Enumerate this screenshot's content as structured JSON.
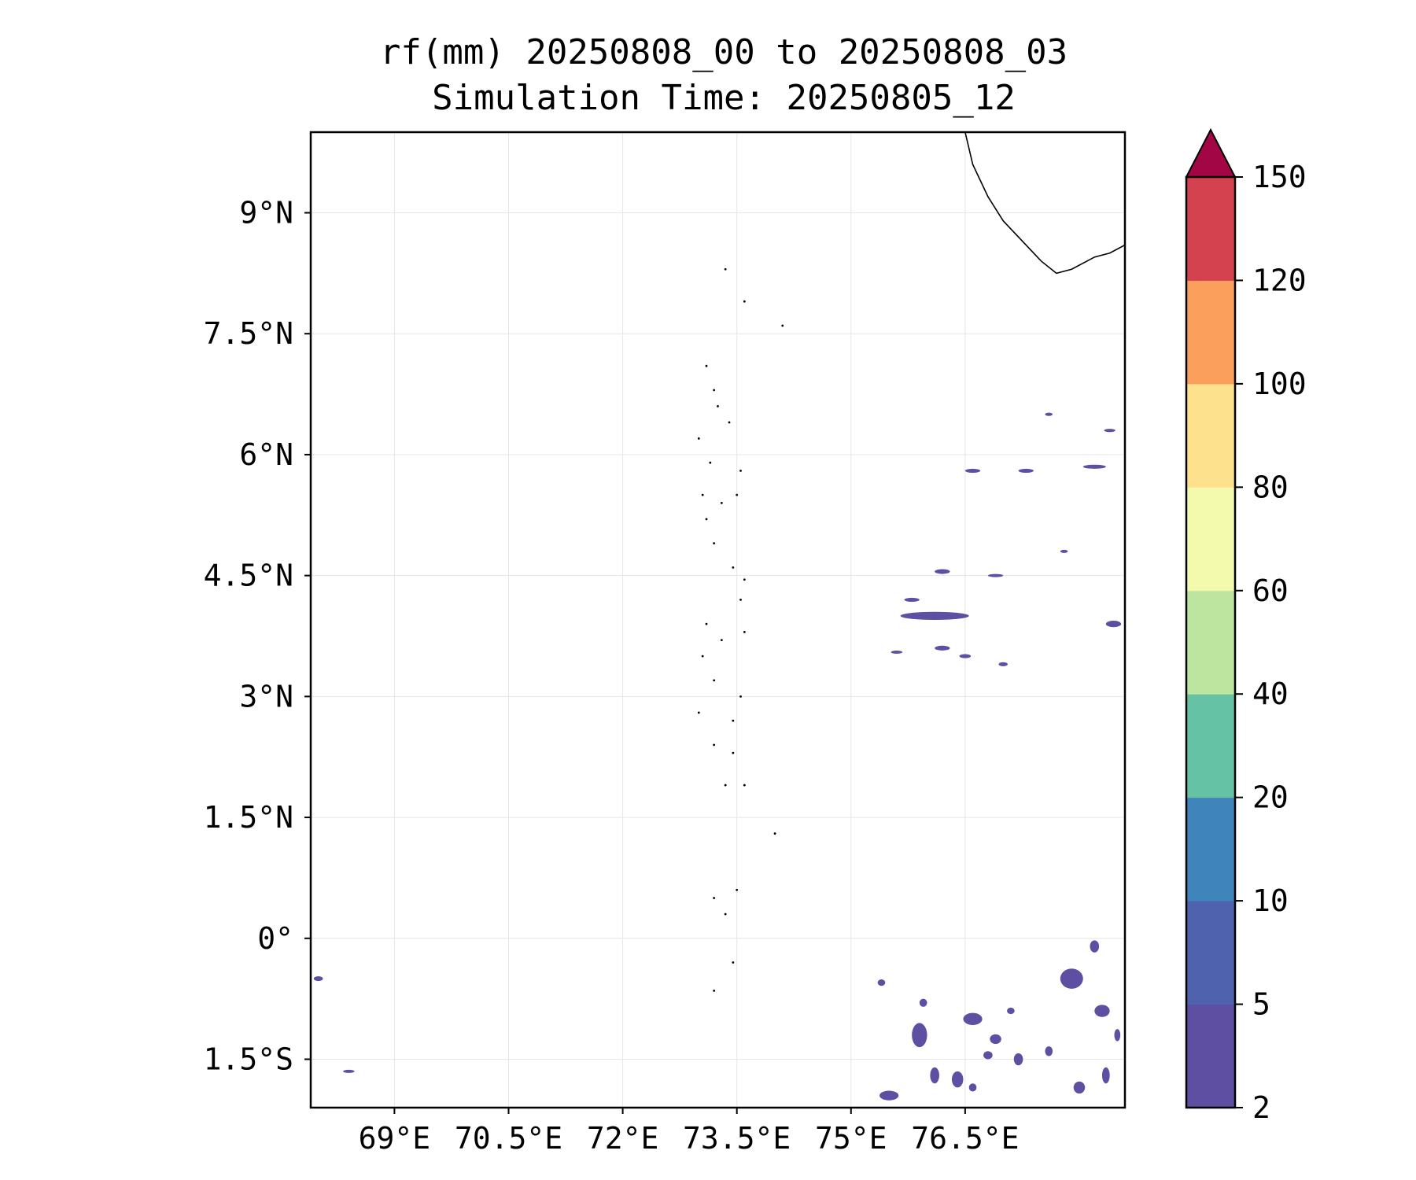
{
  "title": {
    "line1": "rf(mm) 20250808_00 to 20250808_03",
    "line2": "Simulation Time: 20250805_12"
  },
  "map": {
    "lon_range": [
      67.9,
      78.6
    ],
    "lat_range": [
      -2.1,
      10.0
    ],
    "lon_ticks": [
      {
        "value": 69.0,
        "label": "69°E"
      },
      {
        "value": 70.5,
        "label": "70.5°E"
      },
      {
        "value": 72.0,
        "label": "72°E"
      },
      {
        "value": 73.5,
        "label": "73.5°E"
      },
      {
        "value": 75.0,
        "label": "75°E"
      },
      {
        "value": 76.5,
        "label": "76.5°E"
      }
    ],
    "lat_ticks": [
      {
        "value": 9.0,
        "label": "9°N"
      },
      {
        "value": 7.5,
        "label": "7.5°N"
      },
      {
        "value": 6.0,
        "label": "6°N"
      },
      {
        "value": 4.5,
        "label": "4.5°N"
      },
      {
        "value": 3.0,
        "label": "3°N"
      },
      {
        "value": 1.5,
        "label": "1.5°N"
      },
      {
        "value": 0.0,
        "label": "0°"
      },
      {
        "value": -1.5,
        "label": "1.5°S"
      }
    ],
    "gridlines": true,
    "coastline_india": [
      [
        78.6,
        8.6
      ],
      [
        78.4,
        8.5
      ],
      [
        78.2,
        8.45
      ],
      [
        77.9,
        8.3
      ],
      [
        77.7,
        8.25
      ],
      [
        77.5,
        8.4
      ],
      [
        77.3,
        8.6
      ],
      [
        77.0,
        8.9
      ],
      [
        76.8,
        9.2
      ],
      [
        76.6,
        9.6
      ],
      [
        76.5,
        10.0
      ]
    ],
    "maldives_atolls": [
      [
        73.35,
        8.3
      ],
      [
        73.1,
        7.1
      ],
      [
        73.2,
        6.8
      ],
      [
        73.25,
        6.6
      ],
      [
        73.4,
        6.4
      ],
      [
        73.0,
        6.2
      ],
      [
        73.15,
        5.9
      ],
      [
        73.05,
        5.5
      ],
      [
        73.3,
        5.4
      ],
      [
        73.1,
        5.2
      ],
      [
        73.5,
        5.5
      ],
      [
        73.55,
        5.8
      ],
      [
        73.2,
        4.9
      ],
      [
        73.45,
        4.6
      ],
      [
        73.55,
        4.2
      ],
      [
        73.6,
        4.45
      ],
      [
        73.1,
        3.9
      ],
      [
        73.3,
        3.7
      ],
      [
        73.6,
        3.8
      ],
      [
        73.05,
        3.5
      ],
      [
        73.2,
        3.2
      ],
      [
        73.55,
        3.0
      ],
      [
        73.45,
        2.7
      ],
      [
        73.0,
        2.8
      ],
      [
        73.2,
        2.4
      ],
      [
        73.45,
        2.3
      ],
      [
        73.35,
        1.9
      ],
      [
        73.6,
        1.9
      ],
      [
        73.5,
        0.6
      ],
      [
        73.2,
        0.5
      ],
      [
        73.35,
        0.3
      ],
      [
        73.45,
        -0.3
      ],
      [
        73.2,
        -0.65
      ],
      [
        74.0,
        1.3
      ],
      [
        74.1,
        7.6
      ],
      [
        73.6,
        7.9
      ]
    ],
    "rainfall_patches": [
      {
        "lon": 76.1,
        "lat": 4.0,
        "w": 0.9,
        "h": 0.1
      },
      {
        "lon": 75.8,
        "lat": 4.2,
        "w": 0.2,
        "h": 0.05
      },
      {
        "lon": 76.2,
        "lat": 4.55,
        "w": 0.2,
        "h": 0.06
      },
      {
        "lon": 76.6,
        "lat": 5.8,
        "w": 0.2,
        "h": 0.05
      },
      {
        "lon": 77.3,
        "lat": 5.8,
        "w": 0.2,
        "h": 0.05
      },
      {
        "lon": 78.2,
        "lat": 5.85,
        "w": 0.3,
        "h": 0.05
      },
      {
        "lon": 78.4,
        "lat": 6.3,
        "w": 0.15,
        "h": 0.04
      },
      {
        "lon": 77.6,
        "lat": 6.5,
        "w": 0.1,
        "h": 0.04
      },
      {
        "lon": 76.9,
        "lat": 4.5,
        "w": 0.2,
        "h": 0.03
      },
      {
        "lon": 76.2,
        "lat": 3.6,
        "w": 0.2,
        "h": 0.06
      },
      {
        "lon": 76.5,
        "lat": 3.5,
        "w": 0.15,
        "h": 0.05
      },
      {
        "lon": 77.0,
        "lat": 3.4,
        "w": 0.12,
        "h": 0.05
      },
      {
        "lon": 75.6,
        "lat": 3.55,
        "w": 0.15,
        "h": 0.03
      },
      {
        "lon": 78.45,
        "lat": 3.9,
        "w": 0.2,
        "h": 0.08
      },
      {
        "lon": 77.8,
        "lat": 4.8,
        "w": 0.1,
        "h": 0.03
      },
      {
        "lon": 68.0,
        "lat": -0.5,
        "w": 0.12,
        "h": 0.06
      },
      {
        "lon": 68.4,
        "lat": -1.65,
        "w": 0.15,
        "h": 0.03
      },
      {
        "lon": 77.9,
        "lat": -0.5,
        "w": 0.3,
        "h": 0.25
      },
      {
        "lon": 78.2,
        "lat": -0.1,
        "w": 0.12,
        "h": 0.15
      },
      {
        "lon": 78.3,
        "lat": -0.9,
        "w": 0.2,
        "h": 0.15
      },
      {
        "lon": 75.9,
        "lat": -1.2,
        "w": 0.2,
        "h": 0.3
      },
      {
        "lon": 76.6,
        "lat": -1.0,
        "w": 0.25,
        "h": 0.15
      },
      {
        "lon": 76.9,
        "lat": -1.25,
        "w": 0.15,
        "h": 0.12
      },
      {
        "lon": 77.1,
        "lat": -0.9,
        "w": 0.1,
        "h": 0.08
      },
      {
        "lon": 76.1,
        "lat": -1.7,
        "w": 0.12,
        "h": 0.2
      },
      {
        "lon": 76.4,
        "lat": -1.75,
        "w": 0.15,
        "h": 0.2
      },
      {
        "lon": 75.5,
        "lat": -1.95,
        "w": 0.25,
        "h": 0.12
      },
      {
        "lon": 76.8,
        "lat": -1.45,
        "w": 0.12,
        "h": 0.1
      },
      {
        "lon": 77.2,
        "lat": -1.5,
        "w": 0.12,
        "h": 0.15
      },
      {
        "lon": 77.6,
        "lat": -1.4,
        "w": 0.1,
        "h": 0.12
      },
      {
        "lon": 78.0,
        "lat": -1.85,
        "w": 0.15,
        "h": 0.15
      },
      {
        "lon": 78.35,
        "lat": -1.7,
        "w": 0.1,
        "h": 0.2
      },
      {
        "lon": 76.6,
        "lat": -1.85,
        "w": 0.1,
        "h": 0.1
      },
      {
        "lon": 75.4,
        "lat": -0.55,
        "w": 0.1,
        "h": 0.08
      },
      {
        "lon": 75.95,
        "lat": -0.8,
        "w": 0.1,
        "h": 0.1
      },
      {
        "lon": 78.5,
        "lat": -1.2,
        "w": 0.08,
        "h": 0.15
      }
    ],
    "rainfall_color": "#5e4fa2"
  },
  "colorbar": {
    "levels": [
      2,
      5,
      10,
      20,
      40,
      60,
      80,
      100,
      120,
      150
    ],
    "labels": [
      "2",
      "5",
      "10",
      "20",
      "40",
      "60",
      "80",
      "100",
      "120",
      "150"
    ],
    "colors": [
      "#5e4fa2",
      "#4e62ad",
      "#3f84ba",
      "#66c2a5",
      "#bde5a0",
      "#f4faad",
      "#fee18c",
      "#fba05c",
      "#d5424f"
    ],
    "extend_color": "#a20644"
  }
}
